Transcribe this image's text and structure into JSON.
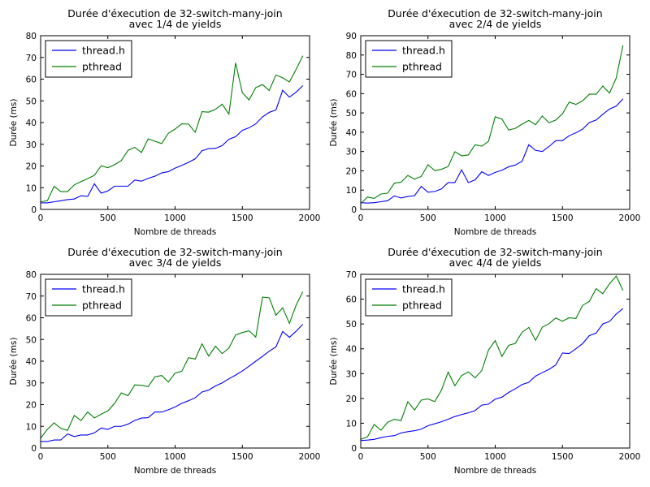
{
  "chart_data": [
    {
      "type": "line",
      "title": [
        "Durée d'éxecution de 32-switch-many-join",
        "avec 1/4 de yields"
      ],
      "xlabel": "Nombre de threads",
      "ylabel": "Durée (ms)",
      "xlim": [
        0,
        2000
      ],
      "ylim": [
        0,
        80
      ],
      "xticks": [
        0,
        500,
        1000,
        1500,
        2000
      ],
      "yticks": [
        0,
        10,
        20,
        30,
        40,
        50,
        60,
        70,
        80
      ],
      "grid": false,
      "legend_position": "top-left",
      "series": [
        {
          "name": "thread.h",
          "color": "#0000ff",
          "x": [
            0,
            50,
            100,
            150,
            200,
            250,
            300,
            350,
            400,
            450,
            500,
            550,
            600,
            650,
            700,
            750,
            800,
            850,
            900,
            950,
            1000,
            1050,
            1100,
            1150,
            1200,
            1250,
            1300,
            1350,
            1400,
            1450,
            1500,
            1550,
            1600,
            1650,
            1700,
            1750,
            1800,
            1850,
            1900,
            1950
          ],
          "y": [
            3,
            3,
            3.5,
            4,
            4.5,
            4.8,
            6.3,
            6,
            11.8,
            7.5,
            8.5,
            10.7,
            10.7,
            10.7,
            13.5,
            13,
            14.3,
            15.3,
            16.8,
            17.4,
            19,
            20.3,
            21.7,
            23.3,
            27,
            28,
            28.1,
            29.4,
            32.3,
            33.5,
            36.4,
            37.6,
            39.4,
            42.6,
            44.7,
            45.8,
            54.9,
            51.7,
            54,
            57
          ]
        },
        {
          "name": "pthread",
          "color": "#008000",
          "x": [
            0,
            50,
            100,
            150,
            200,
            250,
            300,
            350,
            400,
            450,
            500,
            550,
            600,
            650,
            700,
            750,
            800,
            850,
            900,
            950,
            1000,
            1050,
            1100,
            1150,
            1200,
            1250,
            1300,
            1350,
            1400,
            1450,
            1500,
            1550,
            1600,
            1650,
            1700,
            1750,
            1800,
            1850,
            1900,
            1950
          ],
          "y": [
            3.5,
            4,
            10.6,
            8.2,
            8.2,
            11.3,
            12.8,
            14.2,
            15.7,
            20.1,
            19.2,
            20.6,
            22.5,
            27.2,
            28.6,
            26.2,
            32.5,
            31.4,
            30.3,
            35.1,
            37,
            39.4,
            39.3,
            35.5,
            45,
            44.8,
            46.1,
            48.5,
            43.9,
            67.5,
            53.8,
            50.4,
            56.1,
            57.5,
            54.8,
            61.9,
            60.6,
            58.7,
            64.5,
            70.8
          ]
        }
      ]
    },
    {
      "type": "line",
      "title": [
        "Durée d'éxecution de 32-switch-many-join",
        "avec 2/4 de yields"
      ],
      "xlabel": "Nombre de threads",
      "ylabel": "Durée (ms)",
      "xlim": [
        0,
        2000
      ],
      "ylim": [
        0,
        90
      ],
      "xticks": [
        0,
        500,
        1000,
        1500,
        2000
      ],
      "yticks": [
        0,
        10,
        20,
        30,
        40,
        50,
        60,
        70,
        80,
        90
      ],
      "grid": false,
      "legend_position": "top-left",
      "series": [
        {
          "name": "thread.h",
          "color": "#0000ff",
          "x": [
            0,
            50,
            100,
            150,
            200,
            250,
            300,
            350,
            400,
            450,
            500,
            550,
            600,
            650,
            700,
            750,
            800,
            850,
            900,
            950,
            1000,
            1050,
            1100,
            1150,
            1200,
            1250,
            1300,
            1350,
            1400,
            1450,
            1500,
            1550,
            1600,
            1650,
            1700,
            1750,
            1800,
            1850,
            1900,
            1950
          ],
          "y": [
            3.5,
            3.3,
            3.5,
            4,
            4.5,
            7,
            5.9,
            6.7,
            7.1,
            11.9,
            8.9,
            9.3,
            10.6,
            13.9,
            13.9,
            20.5,
            13.9,
            15.3,
            19.5,
            17.6,
            19.2,
            20.3,
            22.1,
            23,
            25,
            33.5,
            30.6,
            30,
            32.6,
            35.6,
            35.6,
            38.2,
            39.7,
            41.6,
            45,
            46.3,
            49.3,
            52,
            53.5,
            57.3
          ]
        },
        {
          "name": "pthread",
          "color": "#008000",
          "x": [
            0,
            50,
            100,
            150,
            200,
            250,
            300,
            350,
            400,
            450,
            500,
            550,
            600,
            650,
            700,
            750,
            800,
            850,
            900,
            950,
            1000,
            1050,
            1100,
            1150,
            1200,
            1250,
            1300,
            1350,
            1400,
            1450,
            1500,
            1550,
            1600,
            1650,
            1700,
            1750,
            1800,
            1850,
            1900,
            1950
          ],
          "y": [
            3,
            6.4,
            5.7,
            8,
            8.4,
            13.6,
            14.1,
            17.6,
            15.7,
            17.1,
            23.2,
            20.1,
            20.8,
            22.2,
            29.9,
            27.8,
            28.2,
            33.5,
            32.8,
            35.3,
            48,
            46.8,
            41.1,
            42,
            44.2,
            46.1,
            43.9,
            48.4,
            44.9,
            46.3,
            49.5,
            55.6,
            54.4,
            56.3,
            59.7,
            59.7,
            63.9,
            60.3,
            68.1,
            85
          ]
        }
      ]
    },
    {
      "type": "line",
      "title": [
        "Durée d'éxecution de 32-switch-many-join",
        "avec 3/4 de yields"
      ],
      "xlabel": "Nombre de threads",
      "ylabel": "Durée (ms)",
      "xlim": [
        0,
        2000
      ],
      "ylim": [
        0,
        80
      ],
      "xticks": [
        0,
        500,
        1000,
        1500,
        2000
      ],
      "yticks": [
        0,
        10,
        20,
        30,
        40,
        50,
        60,
        70,
        80
      ],
      "grid": false,
      "legend_position": "top-left",
      "series": [
        {
          "name": "thread.h",
          "color": "#0000ff",
          "x": [
            0,
            50,
            100,
            150,
            200,
            250,
            300,
            350,
            400,
            450,
            500,
            550,
            600,
            650,
            700,
            750,
            800,
            850,
            900,
            950,
            1000,
            1050,
            1100,
            1150,
            1200,
            1250,
            1300,
            1350,
            1400,
            1450,
            1500,
            1550,
            1600,
            1650,
            1700,
            1750,
            1800,
            1850,
            1900,
            1950
          ],
          "y": [
            3,
            3,
            3.7,
            3.7,
            6.5,
            5.3,
            6,
            6,
            7,
            9.2,
            8.6,
            10,
            10,
            11,
            12.7,
            13.8,
            14,
            16.6,
            16.6,
            17.6,
            18.9,
            20.6,
            21.8,
            23.2,
            25.8,
            26.7,
            28.6,
            30,
            31.9,
            33.6,
            35.5,
            37.7,
            40,
            42.2,
            44.6,
            46.6,
            53.7,
            51,
            53.8,
            57
          ]
        },
        {
          "name": "pthread",
          "color": "#008000",
          "x": [
            0,
            50,
            100,
            150,
            200,
            250,
            300,
            350,
            400,
            450,
            500,
            550,
            600,
            650,
            700,
            750,
            800,
            850,
            900,
            950,
            1000,
            1050,
            1100,
            1150,
            1200,
            1250,
            1300,
            1350,
            1400,
            1450,
            1500,
            1550,
            1600,
            1650,
            1700,
            1750,
            1800,
            1850,
            1900,
            1950
          ],
          "y": [
            4.5,
            8.6,
            11.6,
            9.1,
            8.1,
            15,
            12.7,
            16.6,
            13.9,
            15.6,
            17.1,
            20.6,
            25.4,
            24.1,
            29.1,
            28.9,
            28.3,
            32.8,
            33.4,
            30.4,
            34.5,
            35.4,
            41.6,
            41,
            48,
            42.3,
            46.9,
            43.5,
            46,
            52.1,
            53.2,
            54,
            51.1,
            69.5,
            69.2,
            61.2,
            64.6,
            57.4,
            65.8,
            72
          ]
        }
      ]
    },
    {
      "type": "line",
      "title": [
        "Durée d'éxecution de 32-switch-many-join",
        "avec 4/4 de yields"
      ],
      "xlabel": "Nombre de threads",
      "ylabel": "Durée (ms)",
      "xlim": [
        0,
        2000
      ],
      "ylim": [
        0,
        70
      ],
      "xticks": [
        0,
        500,
        1000,
        1500,
        2000
      ],
      "yticks": [
        0,
        10,
        20,
        30,
        40,
        50,
        60,
        70
      ],
      "grid": false,
      "legend_position": "top-left",
      "series": [
        {
          "name": "thread.h",
          "color": "#0000ff",
          "x": [
            0,
            50,
            100,
            150,
            200,
            250,
            300,
            350,
            400,
            450,
            500,
            550,
            600,
            650,
            700,
            750,
            800,
            850,
            900,
            950,
            1000,
            1050,
            1100,
            1150,
            1200,
            1250,
            1300,
            1350,
            1400,
            1450,
            1500,
            1550,
            1600,
            1650,
            1700,
            1750,
            1800,
            1850,
            1900,
            1950
          ],
          "y": [
            3,
            3.2,
            3.5,
            4.2,
            4.7,
            5,
            6.1,
            6.6,
            7,
            7.6,
            9,
            9.8,
            10.6,
            11.6,
            12.7,
            13.5,
            14.2,
            15.1,
            17.3,
            17.7,
            19.7,
            20.5,
            22.4,
            23.9,
            25.6,
            26.5,
            29,
            30.4,
            31.7,
            33.5,
            38.3,
            38.1,
            40,
            42.1,
            45.3,
            46.3,
            50,
            51,
            54,
            56.2
          ]
        },
        {
          "name": "pthread",
          "color": "#008000",
          "x": [
            0,
            50,
            100,
            150,
            200,
            250,
            300,
            350,
            400,
            450,
            500,
            550,
            600,
            650,
            700,
            750,
            800,
            850,
            900,
            950,
            1000,
            1050,
            1100,
            1150,
            1200,
            1250,
            1300,
            1350,
            1400,
            1450,
            1500,
            1550,
            1600,
            1650,
            1700,
            1750,
            1800,
            1850,
            1900,
            1950
          ],
          "y": [
            3.5,
            4.5,
            9.5,
            7.2,
            10.4,
            11.6,
            11.1,
            18.7,
            15.3,
            19.3,
            19.8,
            18.7,
            23.3,
            30.6,
            25.1,
            29.2,
            30.7,
            28.3,
            31.2,
            39.5,
            43.3,
            36.9,
            41.4,
            42.2,
            46.7,
            48.6,
            43.4,
            48.7,
            50.1,
            52.4,
            51.1,
            52.5,
            52.2,
            57.5,
            59.1,
            64.2,
            62.2,
            66.2,
            69.3,
            63.5
          ]
        }
      ]
    }
  ]
}
